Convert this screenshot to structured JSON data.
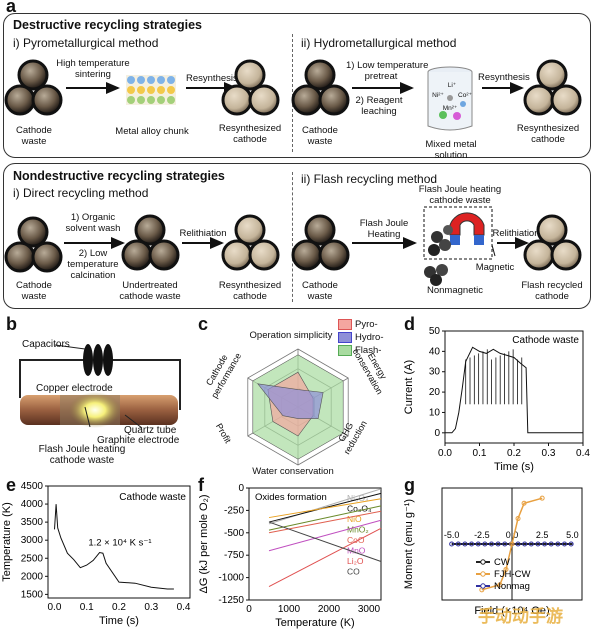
{
  "panel_letters": {
    "a": "a",
    "b": "b",
    "c": "c",
    "d": "d",
    "e": "e",
    "f": "f",
    "g": "g"
  },
  "panel_a": {
    "destructive": {
      "title": "Destructive recycling strategies",
      "pyro": {
        "subtitle": "i) Pyrometallurgical method",
        "step1": "High temperature\nsintering",
        "step2": "Resynthesis",
        "input_label": "Cathode\nwaste",
        "intermediate_label": "Metal alloy chunk",
        "output_label": "Resynthesized\ncathode"
      },
      "hydro": {
        "subtitle": "ii) Hydrometallurgical method",
        "step1": "1) Low temperature\npretreat",
        "step1b": "2) Reagent\nleaching",
        "step2": "Resynthesis",
        "input_label": "Cathode\nwaste",
        "intermediate_label": "Mixed metal solution",
        "ions": [
          "Li⁺",
          "Ni²⁺",
          "Co²⁺",
          "Mn²⁺"
        ],
        "output_label": "Resynthesized\ncathode"
      }
    },
    "nondestructive": {
      "title": "Nondestructive recycling strategies",
      "direct": {
        "subtitle": "i) Direct recycling method",
        "step1": "1) Organic\nsolvent wash",
        "step1b": "2) Low\ntemperature\ncalcination",
        "step2": "Relithiation",
        "input_label": "Cathode\nwaste",
        "intermediate_label": "Undertreated\ncathode waste",
        "output_label": "Resynthesized\ncathode"
      },
      "flash": {
        "subtitle": "ii) Flash recycling method",
        "step1": "Flash Joule\nHeating",
        "fjh_label": "Flash Joule heating\ncathode waste",
        "step2": "Relithiation",
        "input_label": "Cathode\nwaste",
        "magnetic_label": "Magnetic",
        "nonmagnetic_label": "Nonmagnetic",
        "output_label": "Flash recycled\ncathode"
      }
    }
  },
  "panel_b": {
    "capacitors": "Capacitors",
    "copper": "Copper electrode",
    "quartz": "Quartz tube",
    "graphite": "Graphite electrode",
    "fjh": "Flash Joule heating\ncathode waste"
  },
  "panel_c": {
    "legend": [
      "Pyro-",
      "Hydro-",
      "Flash-"
    ],
    "axes": [
      "Operation simplicity",
      "Energy\nconservation",
      "GHG\nreduction",
      "Water conservation",
      "Profit",
      "Cathode\nperformance"
    ],
    "colors": {
      "pyro": "#f4a6a0",
      "hydro": "#8e8fd8",
      "flash": "#a8dba0"
    },
    "chart_data": {
      "type": "radar",
      "categories": [
        "Operation simplicity",
        "Energy conservation",
        "GHG reduction",
        "Water conservation",
        "Profit",
        "Cathode performance"
      ],
      "series": [
        {
          "name": "Pyro-",
          "values": [
            0.6,
            0.3,
            0.3,
            0.5,
            0.5,
            0.6
          ]
        },
        {
          "name": "Hydro-",
          "values": [
            0.3,
            0.5,
            0.4,
            0.2,
            0.3,
            0.8
          ]
        },
        {
          "name": "Flash-",
          "values": [
            0.9,
            0.9,
            0.9,
            0.9,
            0.9,
            0.9
          ]
        }
      ]
    }
  },
  "panel_d": {
    "annotation": "Cathode waste",
    "chart_data": {
      "type": "line",
      "xlabel": "Time (s)",
      "ylabel": "Current (A)",
      "xlim": [
        0.0,
        0.4
      ],
      "ylim": [
        -5,
        50
      ],
      "xticks": [
        "0.0",
        "0.1",
        "0.2",
        "0.3",
        "0.4"
      ],
      "yticks": [
        "0",
        "10",
        "20",
        "30",
        "40",
        "50"
      ],
      "x": [
        0.0,
        0.01,
        0.02,
        0.03,
        0.04,
        0.05,
        0.06,
        0.08,
        0.1,
        0.12,
        0.14,
        0.16,
        0.18,
        0.2,
        0.22,
        0.235,
        0.24,
        0.26,
        0.3,
        0.35,
        0.4
      ],
      "y": [
        0,
        0,
        0,
        2,
        10,
        22,
        35,
        42,
        40,
        39,
        41,
        39,
        38,
        37,
        34,
        32,
        0,
        0,
        0,
        0,
        0
      ]
    }
  },
  "panel_e": {
    "annotation": "Cathode waste",
    "rate": "1.2 × 10⁴ K s⁻¹",
    "chart_data": {
      "type": "line",
      "xlabel": "Time (s)",
      "ylabel": "Temperature (K)",
      "xlim": [
        -0.02,
        0.42
      ],
      "ylim": [
        1400,
        4500
      ],
      "xticks": [
        "0.0",
        "0.1",
        "0.2",
        "0.3",
        "0.4"
      ],
      "yticks": [
        "1500",
        "2000",
        "2500",
        "3000",
        "3500",
        "4000",
        "4500"
      ],
      "x": [
        0.0,
        0.005,
        0.01,
        0.02,
        0.04,
        0.06,
        0.08,
        0.1,
        0.12,
        0.14,
        0.15,
        0.16,
        0.2,
        0.25,
        0.3,
        0.35,
        0.37
      ],
      "y": [
        3300,
        4000,
        3400,
        3000,
        2700,
        2400,
        2300,
        2250,
        2500,
        2600,
        2700,
        2300,
        1900,
        1750,
        1700,
        1650,
        1650
      ]
    }
  },
  "panel_f": {
    "annotation": "Oxides formation",
    "chart_data": {
      "type": "line",
      "xlabel": "Temperature (K)",
      "ylabel": "ΔG (kJ per mole O₂)",
      "xlim": [
        0,
        3300
      ],
      "ylim": [
        -1250,
        0
      ],
      "xticks": [
        "0",
        "1000",
        "2000",
        "3000"
      ],
      "yticks": [
        "-1250",
        "-1000",
        "-750",
        "-500",
        "-250",
        "0"
      ],
      "series": [
        {
          "name": "Ni₃O₄",
          "color": "#b0b0b0",
          "x": [
            500,
            3300
          ],
          "y": [
            -400,
            -10
          ]
        },
        {
          "name": "Co₃O₄",
          "color": "#111111",
          "x": [
            500,
            3300
          ],
          "y": [
            -380,
            -60
          ]
        },
        {
          "name": "NiO",
          "color": "#e8a020",
          "x": [
            500,
            3300
          ],
          "y": [
            -330,
            -120
          ]
        },
        {
          "name": "MnO₂",
          "color": "#6a8a2a",
          "x": [
            500,
            3300
          ],
          "y": [
            -470,
            -200
          ]
        },
        {
          "name": "CoO",
          "color": "#e06050",
          "x": [
            500,
            3300
          ],
          "y": [
            -500,
            -260
          ]
        },
        {
          "name": "MnO",
          "color": "#c050c0",
          "x": [
            500,
            3300
          ],
          "y": [
            -700,
            -360
          ]
        },
        {
          "name": "Li₂O",
          "color": "#e05050",
          "x": [
            500,
            3300
          ],
          "y": [
            -1100,
            -450
          ]
        },
        {
          "name": "CO",
          "color": "#444444",
          "x": [
            500,
            3300
          ],
          "y": [
            -380,
            -820
          ]
        }
      ]
    }
  },
  "panel_g": {
    "watermark": "手动动手游",
    "chart_data": {
      "type": "line",
      "xlabel": "Field (×10⁴ Oe)",
      "ylabel": "Moment (emu g⁻¹)",
      "xlim": [
        -5,
        5
      ],
      "ylim": [
        -20,
        20
      ],
      "xticks": [
        "-5.0",
        "-2.5",
        "0.0",
        "2.5",
        "5.0"
      ],
      "series": [
        {
          "name": "CW",
          "color": "#222222",
          "x": [
            -5,
            5
          ],
          "y": [
            0,
            0
          ]
        },
        {
          "name": "FJH-CW",
          "color": "#e8a040",
          "x": [
            -2.5,
            -1,
            -0.5,
            0,
            0.5,
            1,
            2.5
          ],
          "y": [
            -18,
            -16,
            -10,
            0,
            10,
            16,
            18
          ]
        },
        {
          "name": "Nonmag",
          "color": "#3030a0",
          "x": [
            -5,
            5
          ],
          "y": [
            0,
            0
          ]
        }
      ]
    }
  }
}
